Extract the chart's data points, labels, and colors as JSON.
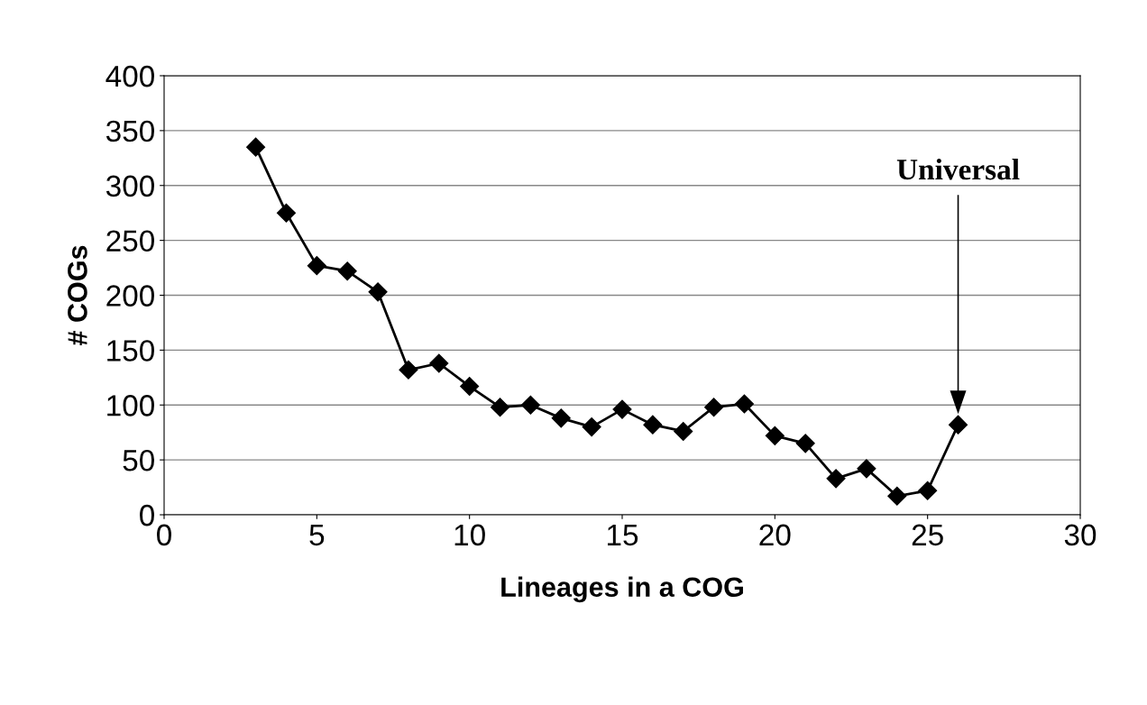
{
  "chart_data": {
    "type": "line",
    "xlabel": "Lineages in a COG",
    "ylabel": "# COGs",
    "x": [
      3,
      4,
      5,
      6,
      7,
      8,
      9,
      10,
      11,
      12,
      13,
      14,
      15,
      16,
      17,
      18,
      19,
      20,
      21,
      22,
      23,
      24,
      25,
      26
    ],
    "series": [
      {
        "color": "#000000",
        "values": [
          335,
          275,
          227,
          222,
          203,
          132,
          138,
          117,
          98,
          100,
          88,
          80,
          96,
          82,
          76,
          98,
          101,
          72,
          65,
          33,
          42,
          17,
          22,
          82
        ]
      }
    ],
    "xlim": [
      0,
      30
    ],
    "xticks": [
      0,
      5,
      10,
      15,
      20,
      25,
      30
    ],
    "ylim": [
      0,
      400
    ],
    "yticks": [
      0,
      50,
      100,
      150,
      200,
      250,
      300,
      350,
      400
    ],
    "grid": "y",
    "marker": "diamond",
    "line_style": "solid",
    "annotations": [
      "Universal"
    ]
  }
}
